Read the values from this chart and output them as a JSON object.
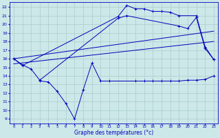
{
  "xlabel": "Graphe des températures (°c)",
  "bg_color": "#cce8e8",
  "grid_color": "#aacccc",
  "line_color": "#0000bb",
  "ylim": [
    8.5,
    22.6
  ],
  "yticks": [
    9,
    10,
    11,
    12,
    13,
    14,
    15,
    16,
    17,
    18,
    19,
    20,
    21,
    22
  ],
  "xlim": [
    -0.5,
    23.5
  ],
  "xticks": [
    0,
    1,
    2,
    3,
    4,
    5,
    6,
    7,
    8,
    9,
    10,
    11,
    12,
    13,
    14,
    15,
    16,
    17,
    18,
    19,
    20,
    21,
    22,
    23
  ],
  "curve_upper": {
    "x": [
      0,
      1,
      12,
      13,
      14,
      15,
      16,
      17,
      18,
      19,
      21,
      22,
      23
    ],
    "y": [
      16.0,
      15.2,
      20.9,
      22.2,
      21.8,
      21.8,
      21.5,
      21.5,
      21.4,
      21.0,
      21.0,
      17.4,
      15.9
    ]
  },
  "curve_upper2": {
    "x": [
      0,
      1,
      2,
      3,
      12,
      13,
      19,
      20,
      21,
      22,
      23
    ],
    "y": [
      16.0,
      15.3,
      14.8,
      13.5,
      20.7,
      21.0,
      19.8,
      19.5,
      20.8,
      17.2,
      15.9
    ]
  },
  "line_upper": {
    "x": [
      0,
      23
    ],
    "y": [
      16.0,
      19.2
    ]
  },
  "line_lower": {
    "x": [
      0,
      23
    ],
    "y": [
      15.4,
      18.0
    ]
  },
  "curve_lower": {
    "x": [
      3,
      4,
      5,
      6,
      7,
      8,
      9,
      10,
      11,
      14,
      15,
      16,
      17,
      18,
      19,
      20,
      21,
      22,
      23
    ],
    "y": [
      13.4,
      13.3,
      12.2,
      10.8,
      9.0,
      12.4,
      15.5,
      13.4,
      13.4,
      13.4,
      13.4,
      13.4,
      13.4,
      13.4,
      13.4,
      13.5,
      13.5,
      13.6,
      14.0
    ]
  }
}
